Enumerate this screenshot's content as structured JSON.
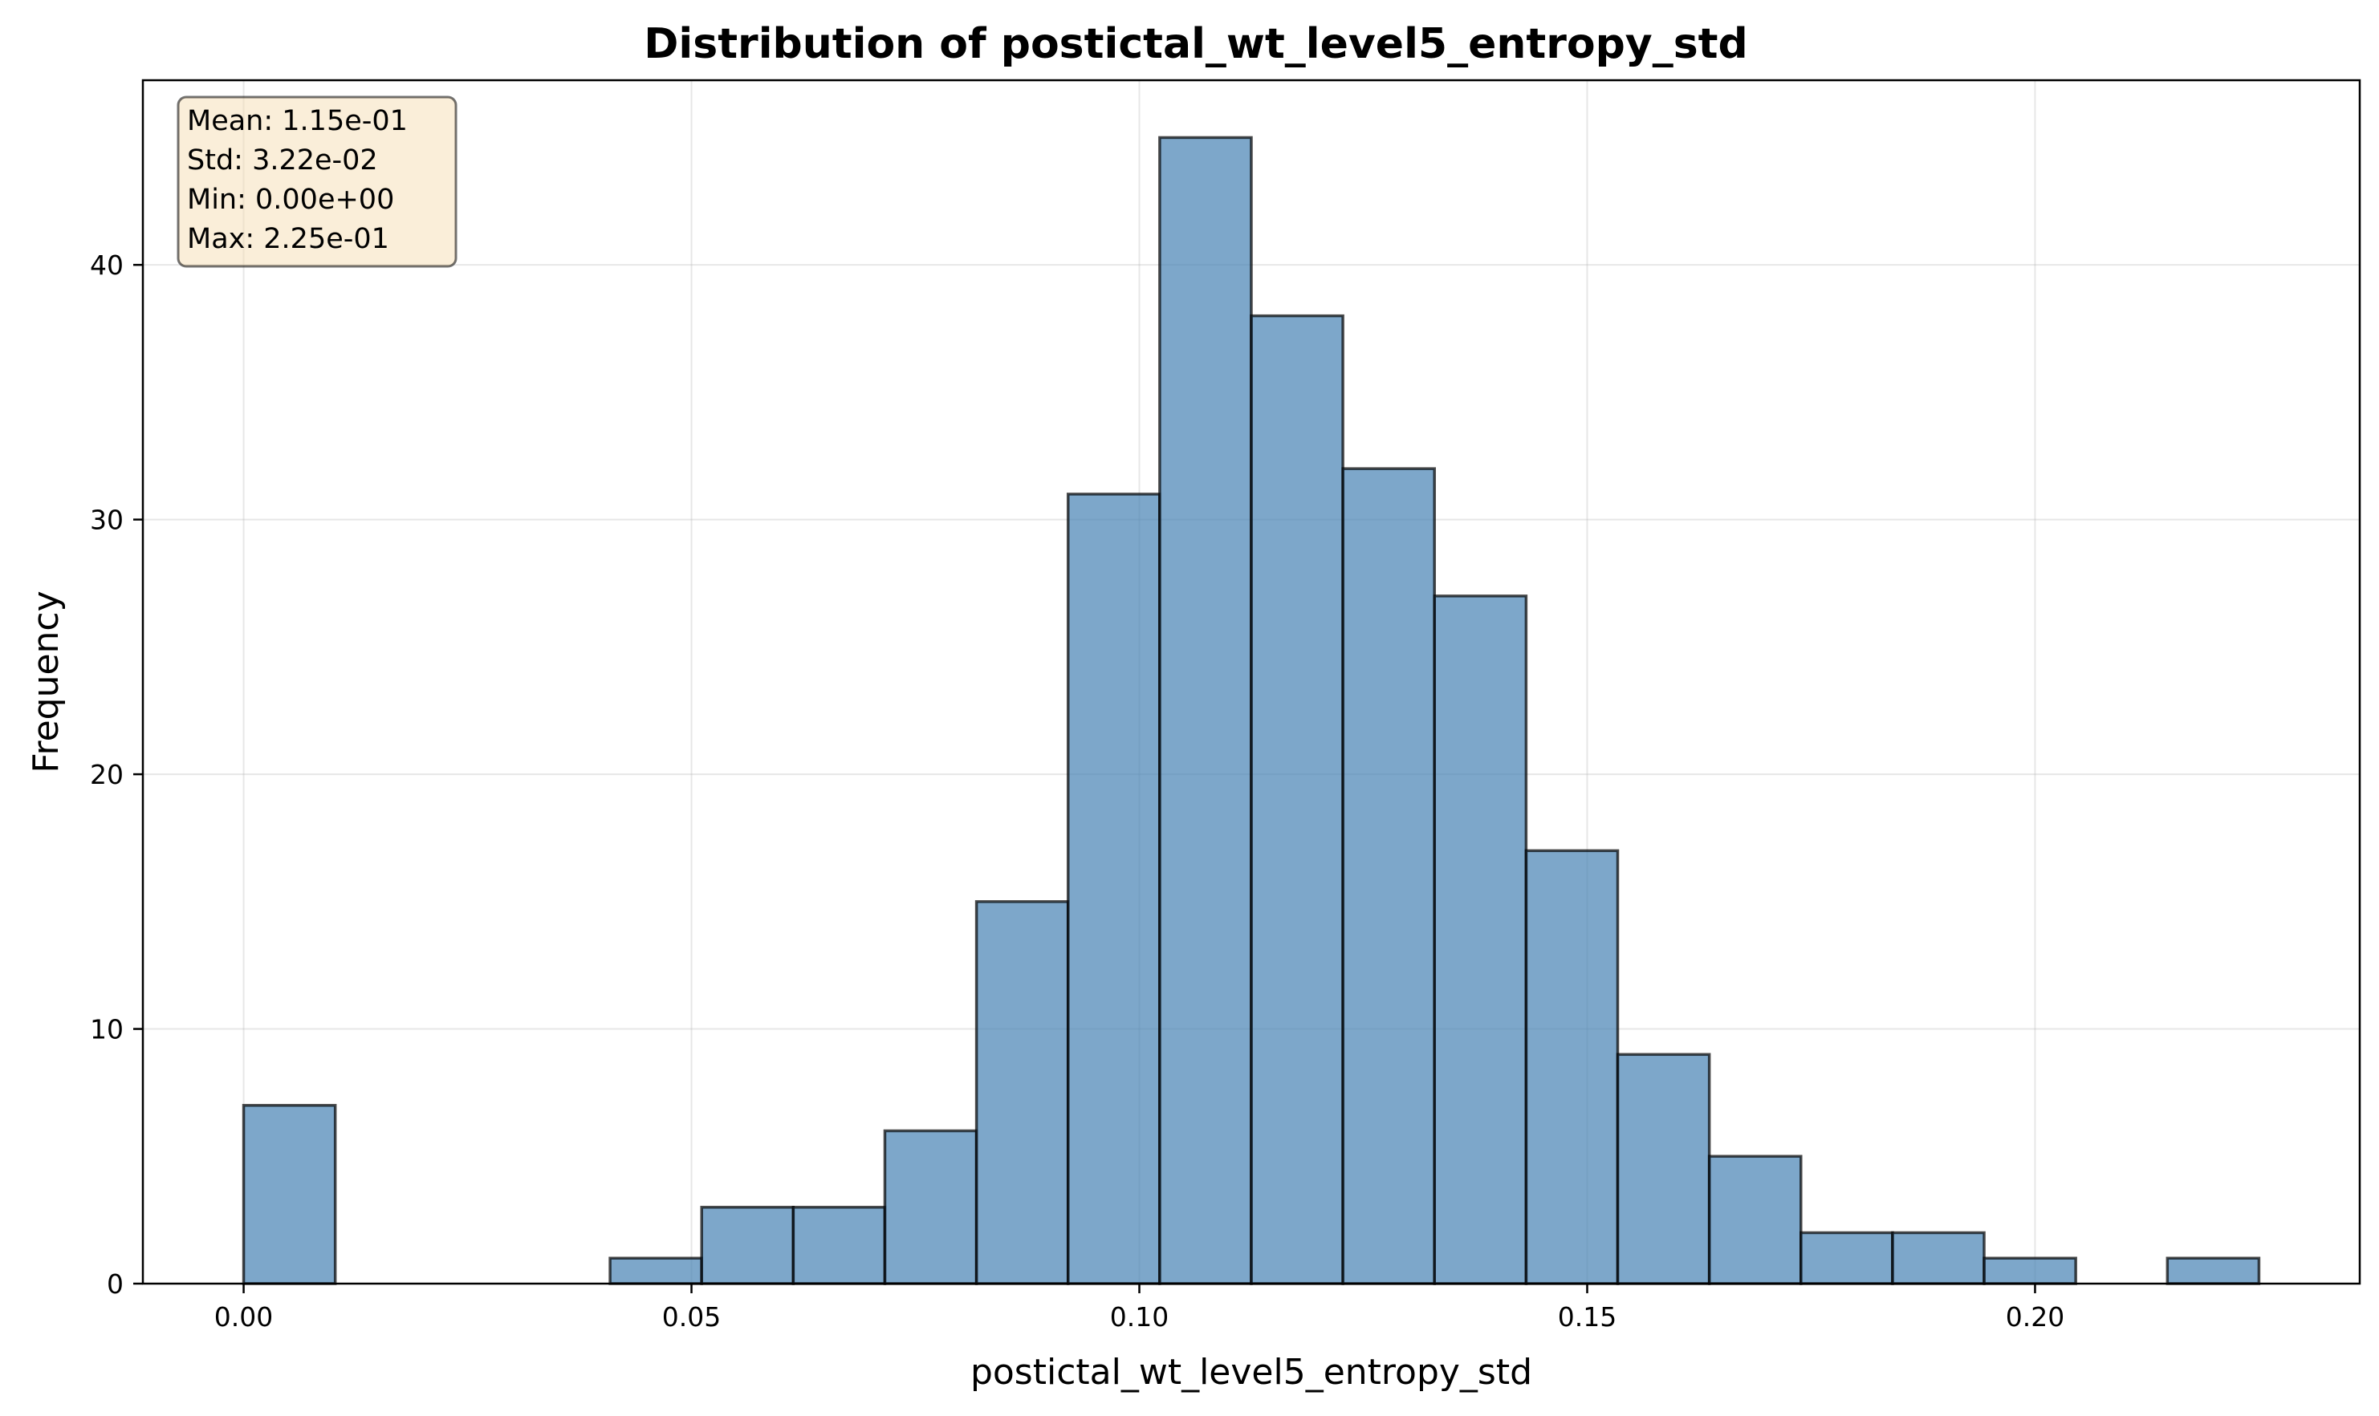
{
  "chart_data": {
    "type": "bar",
    "subtype": "histogram",
    "title": "Distribution of postictal_wt_level5_entropy_std",
    "xlabel": "postictal_wt_level5_entropy_std",
    "ylabel": "Frequency",
    "bar_color": "#4682b4",
    "edge_color": "#000000",
    "stats_box_color": "#f5deb3",
    "grid": true,
    "xlim": [
      -0.01125,
      0.23625
    ],
    "ylim": [
      0,
      47.25
    ],
    "xticks": [
      0.0,
      0.05,
      0.1,
      0.15,
      0.2
    ],
    "xtick_labels": [
      "0.00",
      "0.05",
      "0.10",
      "0.15",
      "0.20"
    ],
    "yticks": [
      0,
      10,
      20,
      30,
      40
    ],
    "ytick_labels": [
      "0",
      "10",
      "20",
      "30",
      "40"
    ],
    "bin_start": 0.0,
    "bin_end": 0.225,
    "counts": [
      7,
      0,
      0,
      0,
      1,
      3,
      3,
      6,
      15,
      31,
      45,
      38,
      32,
      27,
      17,
      9,
      5,
      2,
      2,
      1,
      0,
      1
    ],
    "stats": {
      "position": "top-left",
      "lines": [
        "Mean: 1.15e-01",
        "Std: 3.22e-02",
        "Min: 0.00e+00",
        "Max: 2.25e-01"
      ]
    }
  }
}
